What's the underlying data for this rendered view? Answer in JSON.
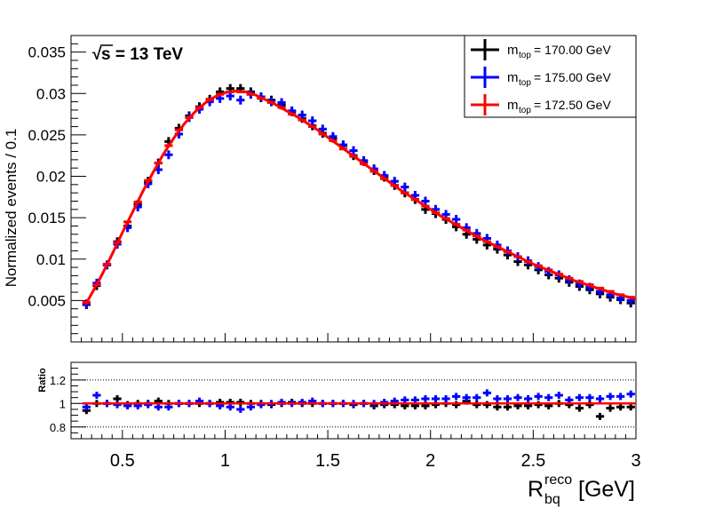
{
  "chart_data": {
    "type": "scatter",
    "annotation": "s = 13 TeV",
    "annotation_root": "√",
    "xlabel": {
      "main": "R",
      "sup": "reco",
      "sub": "bq",
      "unit": "[GeV]"
    },
    "ylabel": "Normalized events / 0.1",
    "ratio_ylabel": "Ratio",
    "xlim": [
      0.25,
      3.0
    ],
    "ylim": [
      0.0,
      0.037
    ],
    "ratio_ylim": [
      0.7,
      1.35
    ],
    "x_ticks": [
      0.5,
      1,
      1.5,
      2,
      2.5,
      3
    ],
    "x_tick_labels": [
      "0.5",
      "1",
      "1.5",
      "2",
      "2.5",
      "3"
    ],
    "y_ticks": [
      0.005,
      0.01,
      0.015,
      0.02,
      0.025,
      0.03,
      0.035
    ],
    "y_tick_labels": [
      "0.005",
      "0.01",
      "0.015",
      "0.02",
      "0.025",
      "0.03",
      "0.035"
    ],
    "ratio_y_ticks": [
      0.8,
      1,
      1.2
    ],
    "ratio_y_tick_labels": [
      "0.8",
      "1",
      "1.2"
    ],
    "ratio_gridlines": [
      0.8,
      1.0,
      1.2
    ],
    "legend_position": "top-right",
    "bin_half_width": 0.02,
    "x": [
      0.325,
      0.375,
      0.425,
      0.475,
      0.525,
      0.575,
      0.625,
      0.675,
      0.725,
      0.775,
      0.825,
      0.875,
      0.925,
      0.975,
      1.025,
      1.075,
      1.125,
      1.175,
      1.225,
      1.275,
      1.325,
      1.375,
      1.425,
      1.475,
      1.525,
      1.575,
      1.625,
      1.675,
      1.725,
      1.775,
      1.825,
      1.875,
      1.925,
      1.975,
      2.025,
      2.075,
      2.125,
      2.175,
      2.225,
      2.275,
      2.325,
      2.375,
      2.425,
      2.475,
      2.525,
      2.575,
      2.625,
      2.675,
      2.725,
      2.775,
      2.825,
      2.875,
      2.925,
      2.975
    ],
    "series": [
      {
        "name": "170.00 GeV",
        "color": "#000000",
        "values": [
          0.0045,
          0.0068,
          0.0093,
          0.0121,
          0.014,
          0.0166,
          0.0194,
          0.0216,
          0.0242,
          0.0258,
          0.0273,
          0.0284,
          0.0293,
          0.0302,
          0.0306,
          0.0306,
          0.0302,
          0.0295,
          0.0292,
          0.0286,
          0.0278,
          0.027,
          0.0261,
          0.0252,
          0.0246,
          0.0237,
          0.0225,
          0.0218,
          0.0207,
          0.0199,
          0.0189,
          0.018,
          0.0172,
          0.016,
          0.0155,
          0.0148,
          0.0139,
          0.013,
          0.0124,
          0.0117,
          0.0112,
          0.0105,
          0.0097,
          0.0093,
          0.0087,
          0.0081,
          0.0077,
          0.0072,
          0.0067,
          0.0063,
          0.0058,
          0.0054,
          0.0051,
          0.0047
        ],
        "ratio": [
          0.94,
          1.0,
          1.0,
          1.04,
          0.99,
          1.0,
          1.0,
          1.02,
          1.0,
          1.0,
          1.0,
          1.0,
          1.0,
          1.01,
          1.01,
          1.01,
          1.0,
          1.0,
          0.99,
          1.0,
          1.01,
          1.0,
          1.0,
          1.0,
          1.0,
          1.0,
          0.99,
          1.0,
          0.98,
          0.99,
          0.99,
          0.98,
          0.98,
          0.98,
          0.99,
          1.0,
          0.99,
          1.02,
          0.99,
          0.99,
          0.97,
          0.97,
          0.98,
          0.98,
          0.99,
          0.98,
          1.0,
          0.99,
          0.96,
          0.99,
          0.89,
          0.96,
          0.97,
          0.97
        ]
      },
      {
        "name": "175.00 GeV",
        "color": "#0000ff",
        "values": [
          0.0046,
          0.0071,
          0.0093,
          0.0118,
          0.0138,
          0.0163,
          0.0191,
          0.0208,
          0.0226,
          0.0251,
          0.0271,
          0.0281,
          0.029,
          0.0294,
          0.0297,
          0.0292,
          0.0299,
          0.0296,
          0.029,
          0.0289,
          0.0279,
          0.0274,
          0.0267,
          0.0257,
          0.0248,
          0.0238,
          0.0231,
          0.0219,
          0.0209,
          0.0201,
          0.0194,
          0.0187,
          0.0177,
          0.017,
          0.016,
          0.0154,
          0.0148,
          0.0138,
          0.0131,
          0.0125,
          0.0117,
          0.011,
          0.0103,
          0.0098,
          0.0091,
          0.0085,
          0.0081,
          0.0075,
          0.007,
          0.0066,
          0.0061,
          0.0057,
          0.0053,
          0.005
        ],
        "ratio": [
          0.97,
          1.07,
          1.0,
          0.99,
          0.98,
          0.98,
          0.99,
          0.97,
          0.97,
          1.0,
          1.0,
          1.02,
          1.0,
          0.98,
          0.97,
          0.95,
          0.97,
          0.99,
          1.0,
          1.01,
          1.0,
          1.01,
          1.02,
          1.0,
          1.0,
          1.0,
          1.0,
          1.0,
          1.0,
          1.01,
          1.02,
          1.03,
          1.03,
          1.04,
          1.04,
          1.04,
          1.06,
          1.05,
          1.05,
          1.09,
          1.04,
          1.04,
          1.05,
          1.04,
          1.06,
          1.05,
          1.07,
          1.03,
          1.05,
          1.05,
          1.04,
          1.06,
          1.06,
          1.08
        ]
      },
      {
        "name": "172.50 GeV",
        "color": "#ff0000",
        "values": [
          0.0048,
          0.0069,
          0.0094,
          0.012,
          0.0145,
          0.0169,
          0.0195,
          0.0216,
          0.0237,
          0.0256,
          0.0271,
          0.0283,
          0.0293,
          0.0299,
          0.0302,
          0.0302,
          0.0299,
          0.0294,
          0.0289,
          0.0283,
          0.0275,
          0.0268,
          0.026,
          0.0251,
          0.0243,
          0.0233,
          0.0224,
          0.0215,
          0.0206,
          0.0197,
          0.0189,
          0.018,
          0.0172,
          0.0164,
          0.0156,
          0.0149,
          0.0142,
          0.0135,
          0.0128,
          0.0121,
          0.0115,
          0.0109,
          0.0103,
          0.0097,
          0.0092,
          0.0087,
          0.0082,
          0.0077,
          0.0073,
          0.0069,
          0.0065,
          0.0061,
          0.0057,
          0.0054
        ],
        "ratio": [
          1,
          1,
          1,
          1,
          1,
          1,
          1,
          1,
          1,
          1,
          1,
          1,
          1,
          1,
          1,
          1,
          1,
          1,
          1,
          1,
          1,
          1,
          1,
          1,
          1,
          1,
          1,
          1,
          1,
          1,
          1,
          1,
          1,
          1,
          1,
          1,
          1,
          1,
          1,
          1,
          1,
          1,
          1,
          1,
          1,
          1,
          1,
          1,
          1,
          1,
          1,
          1,
          1,
          1
        ]
      }
    ],
    "fit_curve": {
      "color": "#ff0000",
      "x": [
        0.32,
        0.35,
        0.4,
        0.45,
        0.5,
        0.55,
        0.6,
        0.65,
        0.7,
        0.75,
        0.8,
        0.85,
        0.9,
        0.95,
        1.0,
        1.05,
        1.1,
        1.15,
        1.2,
        1.25,
        1.3,
        1.35,
        1.4,
        1.45,
        1.5,
        1.55,
        1.6,
        1.65,
        1.7,
        1.75,
        1.8,
        1.85,
        1.9,
        1.95,
        2.0,
        2.05,
        2.1,
        2.15,
        2.2,
        2.25,
        2.3,
        2.35,
        2.4,
        2.45,
        2.5,
        2.55,
        2.6,
        2.65,
        2.7,
        2.75,
        2.8,
        2.85,
        2.9,
        2.95,
        3.0
      ],
      "y": [
        0.0045,
        0.0058,
        0.0081,
        0.0106,
        0.0132,
        0.0157,
        0.0182,
        0.0205,
        0.0227,
        0.0246,
        0.0263,
        0.0277,
        0.0288,
        0.0296,
        0.0301,
        0.0303,
        0.0302,
        0.0298,
        0.0292,
        0.0286,
        0.0279,
        0.0272,
        0.0264,
        0.0256,
        0.0247,
        0.0238,
        0.0229,
        0.022,
        0.0211,
        0.0202,
        0.0193,
        0.0184,
        0.0176,
        0.0168,
        0.016,
        0.0152,
        0.0145,
        0.0138,
        0.0131,
        0.0124,
        0.0118,
        0.0112,
        0.0106,
        0.01,
        0.0094,
        0.0089,
        0.0084,
        0.0079,
        0.0074,
        0.007,
        0.0066,
        0.0062,
        0.0058,
        0.0055,
        0.0052
      ]
    },
    "legend": [
      {
        "label_main": "m",
        "label_sub": "top",
        "label_value": " = 170.00 GeV",
        "color": "#000000"
      },
      {
        "label_main": "m",
        "label_sub": "top",
        "label_value": " = 175.00 GeV",
        "color": "#0000ff"
      },
      {
        "label_main": "m",
        "label_sub": "top",
        "label_value": " = 172.50 GeV",
        "color": "#ff0000"
      }
    ]
  }
}
